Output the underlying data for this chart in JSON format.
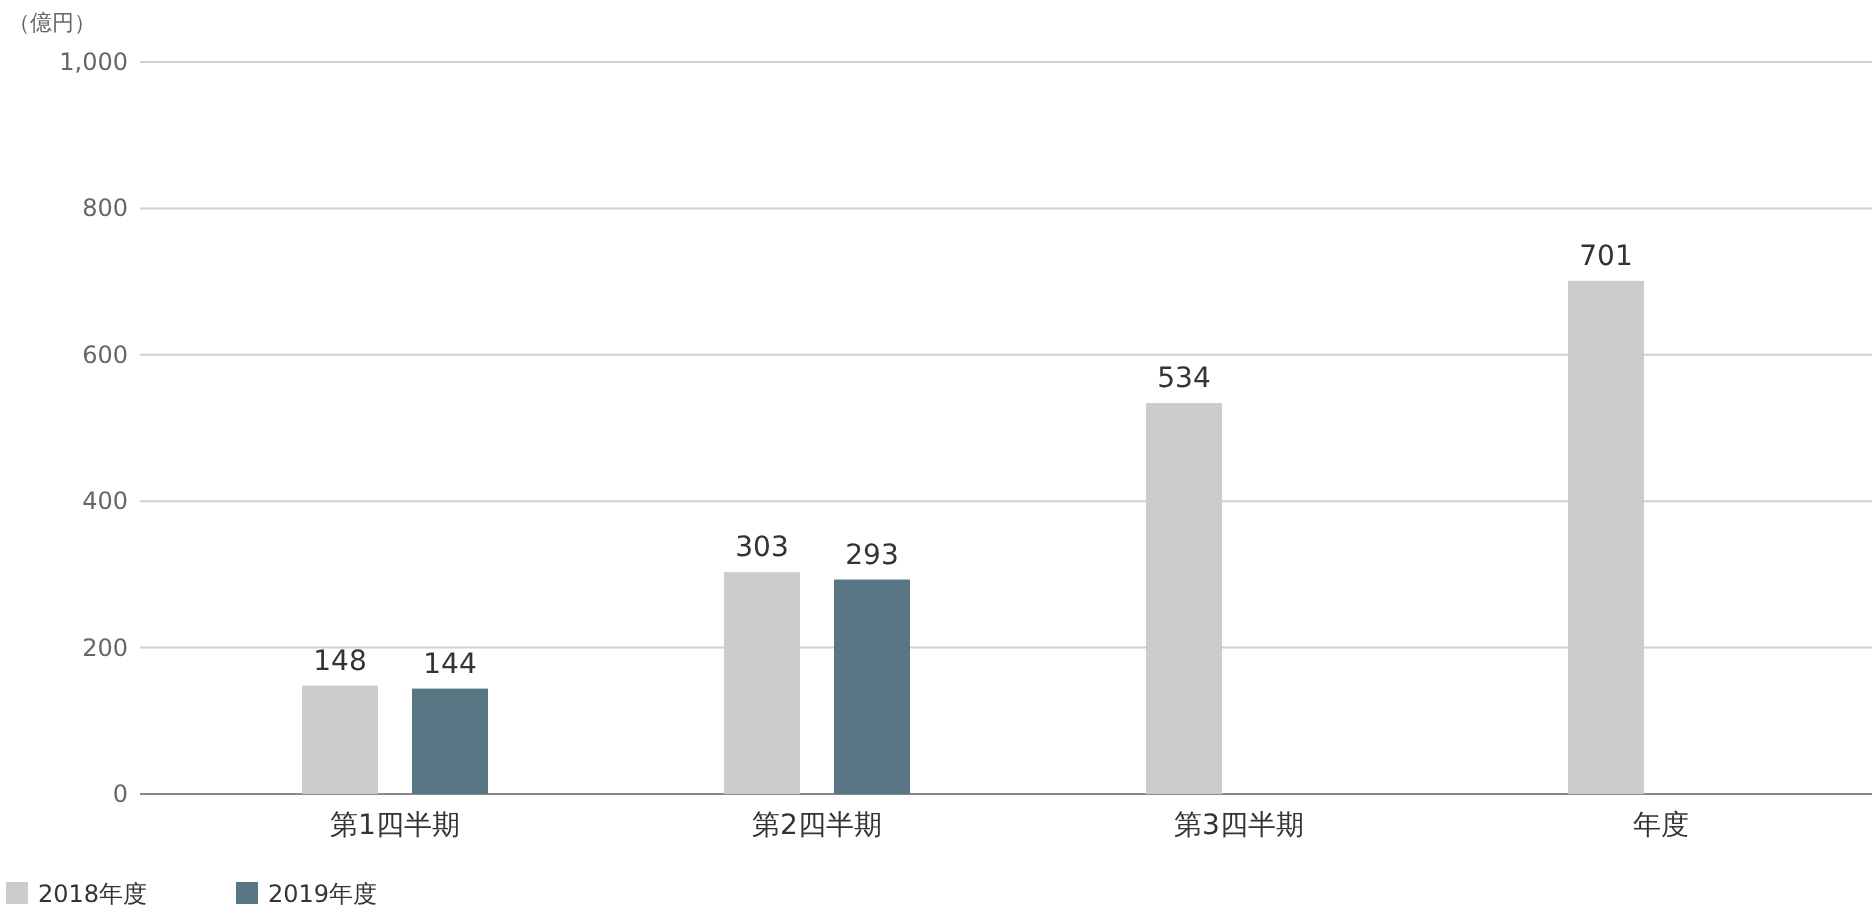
{
  "chart_data": {
    "type": "bar",
    "ylabel": "（億円）",
    "categories": [
      "第1四半期",
      "第2四半期",
      "第3四半期",
      "年度"
    ],
    "series": [
      {
        "name": "2018年度",
        "color": "#cccccc",
        "values": [
          148,
          303,
          534,
          701
        ]
      },
      {
        "name": "2019年度",
        "color": "#587684",
        "values": [
          144,
          293,
          null,
          null
        ]
      }
    ],
    "ylim": [
      0,
      1000
    ],
    "yticks": [
      0,
      200,
      400,
      600,
      800,
      {
        "value": 1000,
        "label": "1,000"
      }
    ],
    "grid": "y",
    "data_labels": true,
    "legend": "bottom left"
  }
}
